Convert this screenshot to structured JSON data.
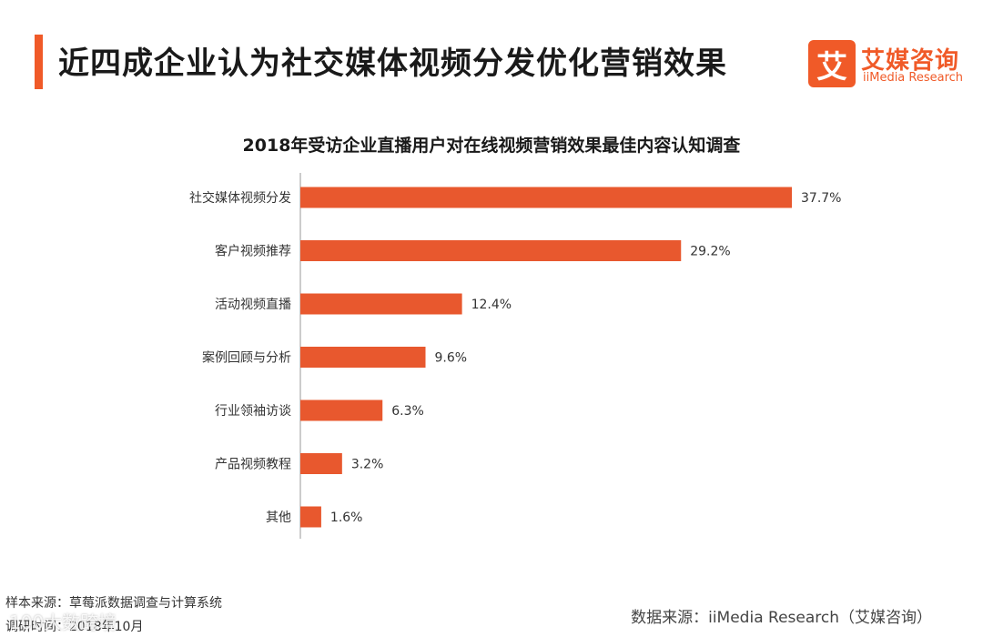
{
  "header": {
    "title": "近四成企业认为社交媒体视频分发优化营销效果"
  },
  "logo": {
    "mark": "艾",
    "name_cn": "艾媒咨询",
    "name_en": "iiMedia Research"
  },
  "colors": {
    "accent": "#f05a28",
    "bar": "#e8582e"
  },
  "chart_data": {
    "type": "bar",
    "orientation": "horizontal",
    "title": "2018年受访企业直播用户对在线视频营销效果最佳内容认知调查",
    "categories": [
      "社交媒体视频分发",
      "客户视频推荐",
      "活动视频直播",
      "案例回顾与分析",
      "行业领袖访谈",
      "产品视频教程",
      "其他"
    ],
    "values": [
      37.7,
      29.2,
      12.4,
      9.6,
      6.3,
      3.2,
      1.6
    ],
    "value_labels": [
      "37.7%",
      "29.2%",
      "12.4%",
      "9.6%",
      "6.3%",
      "3.2%",
      "1.6%"
    ],
    "unit": "%",
    "xlim": [
      0,
      37.7
    ],
    "grid": false,
    "legend": "none"
  },
  "footer": {
    "sample_source": "样本来源：草莓派数据调查与计算系统",
    "survey_time": "调研时间：2018年10月",
    "watermark": "100大数跨境",
    "data_source": "数据来源：iiMedia Research（艾媒咨询）"
  }
}
